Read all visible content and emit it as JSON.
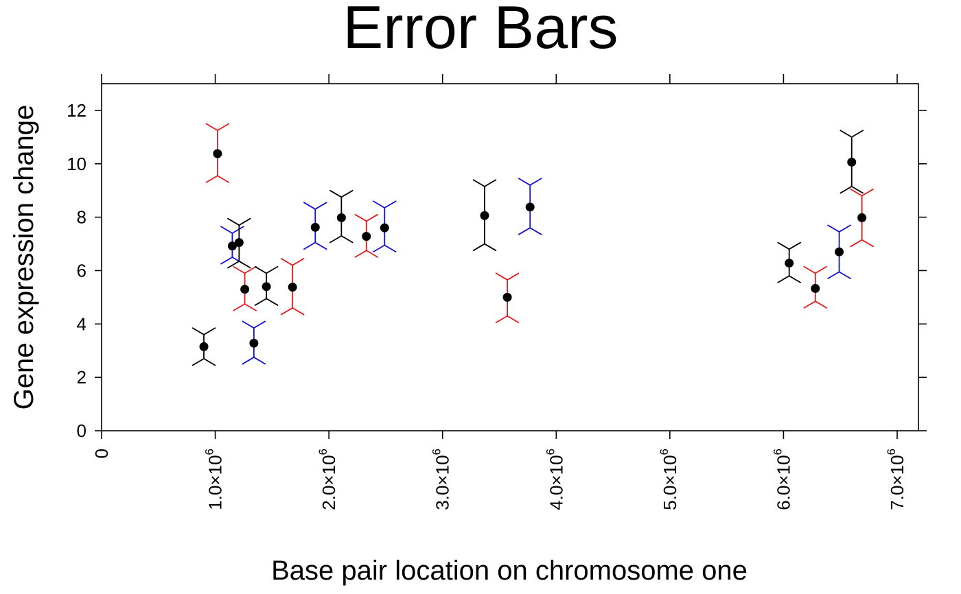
{
  "chart_data": {
    "type": "scatter",
    "title": "Error Bars",
    "xlabel": "Base pair location on chromosome one",
    "ylabel": "Gene expression change",
    "xlim": [
      0,
      7200000
    ],
    "ylim": [
      0,
      13
    ],
    "x_ticks": [
      {
        "value": 0,
        "mantissa": "0",
        "exponent": ""
      },
      {
        "value": 1000000,
        "mantissa": "1.0×10",
        "exponent": "6"
      },
      {
        "value": 2000000,
        "mantissa": "2.0×10",
        "exponent": "6"
      },
      {
        "value": 3000000,
        "mantissa": "3.0×10",
        "exponent": "6"
      },
      {
        "value": 4000000,
        "mantissa": "4.0×10",
        "exponent": "6"
      },
      {
        "value": 5000000,
        "mantissa": "5.0×10",
        "exponent": "6"
      },
      {
        "value": 6000000,
        "mantissa": "6.0×10",
        "exponent": "6"
      },
      {
        "value": 7000000,
        "mantissa": "7.0×10",
        "exponent": "6"
      }
    ],
    "y_ticks": [
      0,
      2,
      4,
      6,
      8,
      10,
      12
    ],
    "grid": false,
    "error_bar_colors": {
      "black": "#000000",
      "red": "#e41a1c",
      "blue": "#1010d0"
    },
    "points": [
      {
        "x": 900000,
        "y": 3.15,
        "lower": 2.7,
        "upper": 3.6,
        "color": "black"
      },
      {
        "x": 1020000,
        "y": 10.38,
        "lower": 9.55,
        "upper": 11.25,
        "color": "red"
      },
      {
        "x": 1150000,
        "y": 6.92,
        "lower": 6.5,
        "upper": 7.4,
        "color": "blue"
      },
      {
        "x": 1210000,
        "y": 7.05,
        "lower": 6.35,
        "upper": 7.7,
        "color": "black"
      },
      {
        "x": 1260000,
        "y": 5.3,
        "lower": 4.75,
        "upper": 5.9,
        "color": "red"
      },
      {
        "x": 1340000,
        "y": 3.28,
        "lower": 2.75,
        "upper": 3.85,
        "color": "blue"
      },
      {
        "x": 1450000,
        "y": 5.4,
        "lower": 4.95,
        "upper": 5.9,
        "color": "black"
      },
      {
        "x": 1680000,
        "y": 5.38,
        "lower": 4.6,
        "upper": 6.2,
        "color": "red"
      },
      {
        "x": 1880000,
        "y": 7.62,
        "lower": 7.05,
        "upper": 8.3,
        "color": "blue"
      },
      {
        "x": 2110000,
        "y": 7.98,
        "lower": 7.3,
        "upper": 8.75,
        "color": "black"
      },
      {
        "x": 2330000,
        "y": 7.28,
        "lower": 6.75,
        "upper": 7.85,
        "color": "red"
      },
      {
        "x": 2490000,
        "y": 7.6,
        "lower": 6.95,
        "upper": 8.35,
        "color": "blue"
      },
      {
        "x": 3370000,
        "y": 8.06,
        "lower": 7.0,
        "upper": 9.15,
        "color": "black"
      },
      {
        "x": 3570000,
        "y": 5.0,
        "lower": 4.3,
        "upper": 5.65,
        "color": "red"
      },
      {
        "x": 3770000,
        "y": 8.38,
        "lower": 7.6,
        "upper": 9.2,
        "color": "blue"
      },
      {
        "x": 6050000,
        "y": 6.28,
        "lower": 5.8,
        "upper": 6.8,
        "color": "black"
      },
      {
        "x": 6280000,
        "y": 5.33,
        "lower": 4.85,
        "upper": 5.9,
        "color": "red"
      },
      {
        "x": 6490000,
        "y": 6.7,
        "lower": 5.95,
        "upper": 7.45,
        "color": "blue"
      },
      {
        "x": 6600000,
        "y": 10.06,
        "lower": 9.15,
        "upper": 11.0,
        "color": "black"
      },
      {
        "x": 6690000,
        "y": 7.98,
        "lower": 7.15,
        "upper": 8.8,
        "color": "red"
      }
    ]
  }
}
